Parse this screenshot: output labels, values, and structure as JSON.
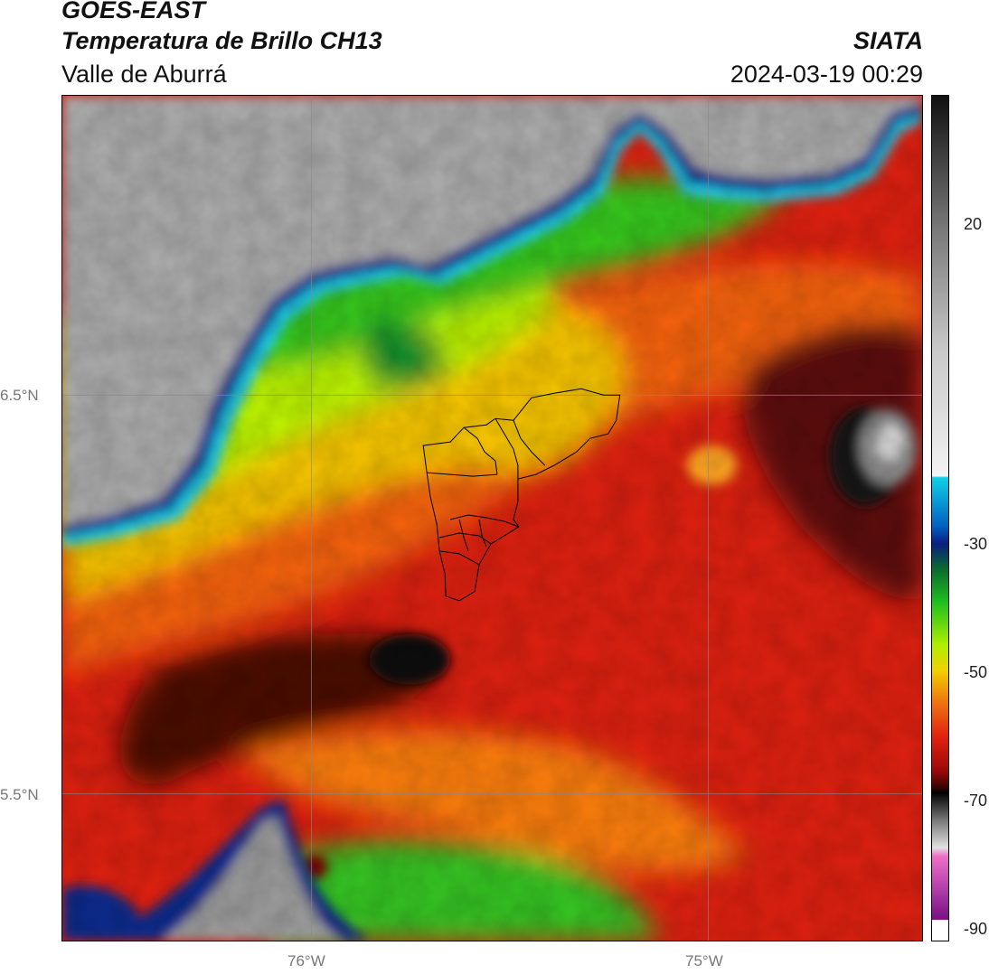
{
  "header": {
    "satellite": "GOES-EAST",
    "product": "Temperatura de Brillo CH13",
    "region": "Valle de Aburrá",
    "agency": "SIATA",
    "datetime": "2024-03-19 00:29"
  },
  "map": {
    "lat_labels": [
      "6.5°N",
      "5.5°N"
    ],
    "lon_labels": [
      "76°W",
      "75°W"
    ]
  },
  "colorbar": {
    "ticks": [
      "20",
      "-30",
      "-50",
      "-70",
      "-90"
    ]
  }
}
